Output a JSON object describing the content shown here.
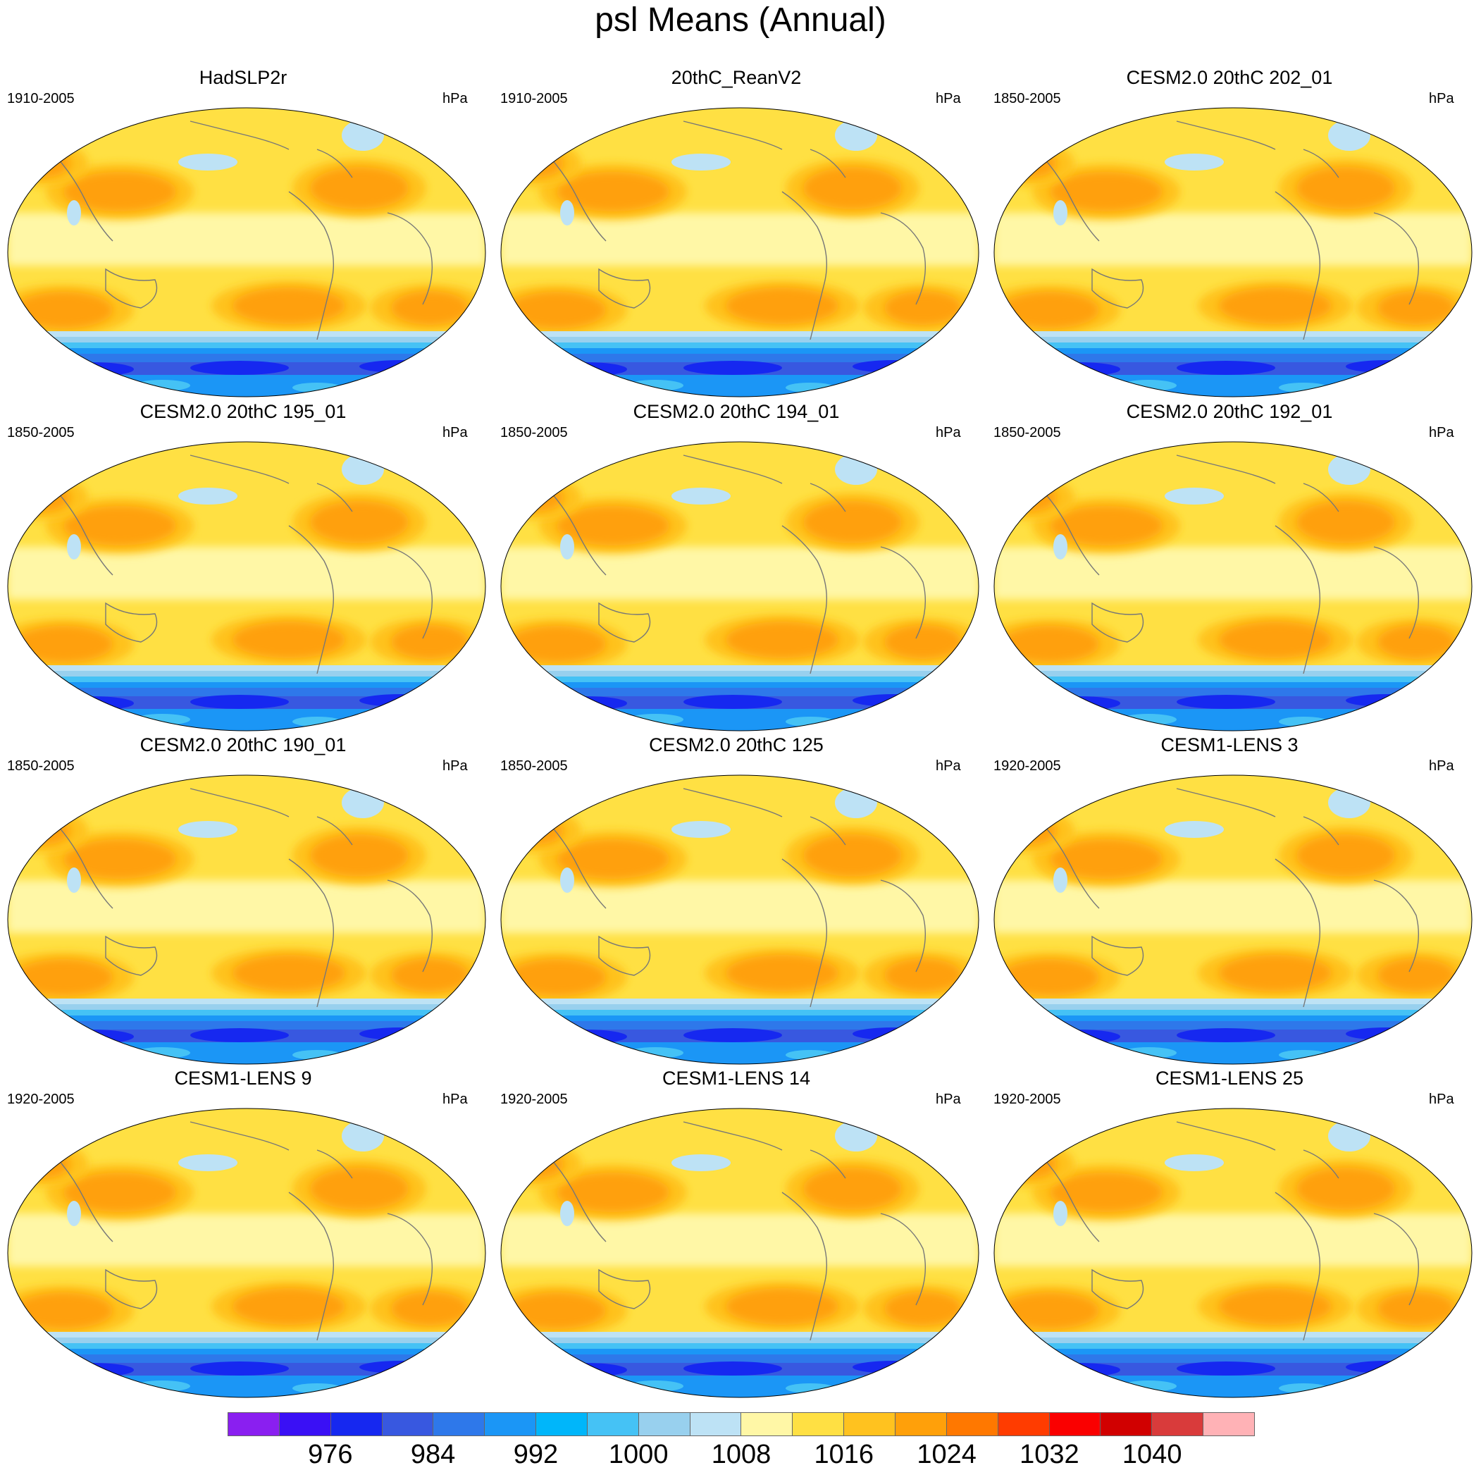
{
  "title": "psl Means (Annual)",
  "colorbar": {
    "colors": [
      "#8a1ff0",
      "#3a10f5",
      "#1628f0",
      "#3858e0",
      "#2e78ea",
      "#1b96f6",
      "#00b6fa",
      "#45c2f5",
      "#98d0ee",
      "#bde2f5",
      "#fff7a6",
      "#ffe043",
      "#ffc21f",
      "#ffa00a",
      "#ff7800",
      "#ff3c00",
      "#fa0000",
      "#d10000",
      "#d93b3b",
      "#ffb2b6"
    ],
    "labels": [
      "976",
      "984",
      "992",
      "1000",
      "1008",
      "1016",
      "1024",
      "1032",
      "1040"
    ]
  },
  "panels": [
    {
      "title": "HadSLP2r",
      "period": "1910-2005",
      "unit": "hPa"
    },
    {
      "title": "20thC_ReanV2",
      "period": "1910-2005",
      "unit": "hPa"
    },
    {
      "title": "CESM2.0 20thC 202_01",
      "period": "1850-2005",
      "unit": "hPa"
    },
    {
      "title": "CESM2.0 20thC 195_01",
      "period": "1850-2005",
      "unit": "hPa"
    },
    {
      "title": "CESM2.0 20thC 194_01",
      "period": "1850-2005",
      "unit": "hPa"
    },
    {
      "title": "CESM2.0 20thC 192_01",
      "period": "1850-2005",
      "unit": "hPa"
    },
    {
      "title": "CESM2.0 20thC 190_01",
      "period": "1850-2005",
      "unit": "hPa"
    },
    {
      "title": "CESM2.0 20thC 125",
      "period": "1850-2005",
      "unit": "hPa"
    },
    {
      "title": "CESM1-LENS 3",
      "period": "1920-2005",
      "unit": "hPa"
    },
    {
      "title": "CESM1-LENS 9",
      "period": "1920-2005",
      "unit": "hPa"
    },
    {
      "title": "CESM1-LENS 14",
      "period": "1920-2005",
      "unit": "hPa"
    },
    {
      "title": "CESM1-LENS 25",
      "period": "1920-2005",
      "unit": "hPa"
    }
  ]
}
